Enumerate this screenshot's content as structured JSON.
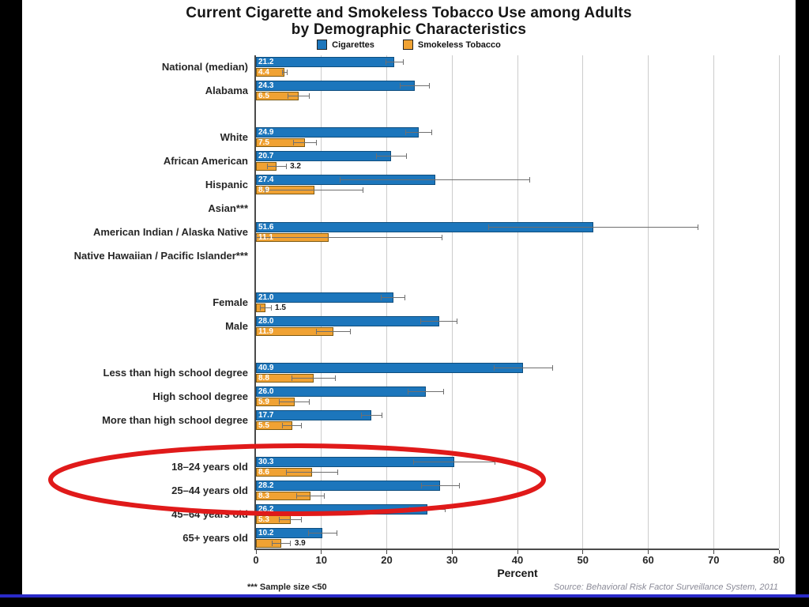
{
  "title": {
    "line1": "Current Cigarette and Smokeless Tobacco Use among Adults",
    "line2": "by Demographic Characteristics"
  },
  "legend": {
    "cigarettes": "Cigarettes",
    "smokeless": "Smokeless Tobacco"
  },
  "footnote": "*** Sample size <50",
  "source": "Source: Behavioral Risk Factor Surveillance System, 2011",
  "chart_data": {
    "type": "bar",
    "orientation": "horizontal",
    "xlabel": "Percent",
    "xlim": [
      0,
      80
    ],
    "xticks": [
      0,
      10,
      20,
      30,
      40,
      50,
      60,
      70,
      80
    ],
    "grid": true,
    "legend_position": "top",
    "series": [
      "Cigarettes",
      "Smokeless Tobacco"
    ],
    "colors": {
      "cigarettes": "#1c76bc",
      "cigarettes_border": "#0f4e7e",
      "smokeless": "#f0a233",
      "smokeless_border": "#7d5a12",
      "error": "#6f6f6f",
      "highlight": "#e01a1a"
    },
    "groups": [
      {
        "label": "National (median)",
        "section": 0,
        "cigarettes": 21.2,
        "cigarettes_err": 1.3,
        "smokeless": 4.4,
        "smokeless_err": 0.4
      },
      {
        "label": "Alabama",
        "section": 0,
        "cigarettes": 24.3,
        "cigarettes_err": 2.2,
        "smokeless": 6.5,
        "smokeless_err": 1.6
      },
      {
        "label": "White",
        "section": 1,
        "cigarettes": 24.9,
        "cigarettes_err": 2.0,
        "smokeless": 7.5,
        "smokeless_err": 1.8
      },
      {
        "label": "African American",
        "section": 1,
        "cigarettes": 20.7,
        "cigarettes_err": 2.3,
        "smokeless": 3.2,
        "smokeless_err": 1.4,
        "smokeless_label_outside": true
      },
      {
        "label": "Hispanic",
        "section": 1,
        "cigarettes": 27.4,
        "cigarettes_err": 14.5,
        "smokeless": 8.9,
        "smokeless_err": 7.5
      },
      {
        "label": "Asian***",
        "section": 1,
        "cigarettes": null,
        "smokeless": null
      },
      {
        "label": "American Indian / Alaska Native",
        "section": 1,
        "cigarettes": 51.6,
        "cigarettes_err": 16.0,
        "smokeless": 11.1,
        "smokeless_err": 17.4
      },
      {
        "label": "Native Hawaiian / Pacific Islander***",
        "section": 1,
        "cigarettes": null,
        "smokeless": null
      },
      {
        "label": "Female",
        "section": 2,
        "cigarettes": 21.0,
        "cigarettes_err": 1.8,
        "smokeless": 1.5,
        "smokeless_err": 0.8,
        "smokeless_label_outside": true
      },
      {
        "label": "Male",
        "section": 2,
        "cigarettes": 28.0,
        "cigarettes_err": 2.8,
        "smokeless": 11.9,
        "smokeless_err": 2.6
      },
      {
        "label": "Less than high school degree",
        "section": 3,
        "cigarettes": 40.9,
        "cigarettes_err": 4.5,
        "smokeless": 8.8,
        "smokeless_err": 3.3
      },
      {
        "label": "High school degree",
        "section": 3,
        "cigarettes": 26.0,
        "cigarettes_err": 2.7,
        "smokeless": 5.9,
        "smokeless_err": 2.3
      },
      {
        "label": "More than high school degree",
        "section": 3,
        "cigarettes": 17.7,
        "cigarettes_err": 1.6,
        "smokeless": 5.5,
        "smokeless_err": 1.5
      },
      {
        "label": "18–24 years old",
        "section": 4,
        "cigarettes": 30.3,
        "cigarettes_err": 6.2,
        "smokeless": 8.6,
        "smokeless_err": 3.9
      },
      {
        "label": "25–44 years old",
        "section": 4,
        "cigarettes": 28.2,
        "cigarettes_err": 2.9,
        "smokeless": 8.3,
        "smokeless_err": 2.1
      },
      {
        "label": "45–64 years old",
        "section": 4,
        "cigarettes": 26.2,
        "cigarettes_err": 2.7,
        "smokeless": 5.3,
        "smokeless_err": 1.7
      },
      {
        "label": "65+ years old",
        "section": 4,
        "cigarettes": 10.2,
        "cigarettes_err": 2.2,
        "smokeless": 3.9,
        "smokeless_err": 1.4,
        "smokeless_label_outside": true
      }
    ],
    "highlighted_groups": [
      "18–24 years old",
      "25–44 years old"
    ]
  }
}
